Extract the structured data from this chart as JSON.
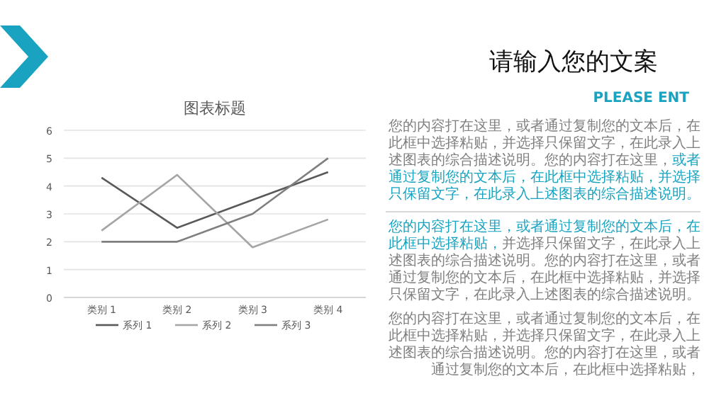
{
  "chart_data": {
    "type": "line",
    "title": "图表标题",
    "categories": [
      "类别 1",
      "类别 2",
      "类别 3",
      "类别 4"
    ],
    "series": [
      {
        "name": "系列 1",
        "color": "#595959",
        "values": [
          4.3,
          2.5,
          3.5,
          4.5
        ]
      },
      {
        "name": "系列 2",
        "color": "#a5a5a5",
        "values": [
          2.4,
          4.4,
          1.8,
          2.8
        ]
      },
      {
        "name": "系列 3",
        "color": "#7f7f7f",
        "values": [
          2,
          2,
          3,
          5
        ]
      }
    ],
    "ylim": [
      0,
      6
    ],
    "yticks": [
      0,
      1,
      2,
      3,
      4,
      5,
      6
    ],
    "grid": "y",
    "legend": "bottom",
    "marker": "none",
    "line_style": "solid",
    "annotations": [
      "请输入您的文案",
      "PLEASE ENT",
      "您的内容打在这里，或者通过复制您的文本后，在此框中选择粘贴，并选择只保留文字，在此录入上述图表的综合描述说明。您的内容打在这里，",
      "或者通过复制您的文本后，在此框中选择粘贴，并选择只保留文字，在此录入上述图表的综合描述说明。",
      "您的内容打在这里，或者通过复制您的文本后，在此框中选择粘贴，",
      "并选择只保留文字，在此录入上述图表的综合描述说明。您的内容打在这里，或者通过复制您的文本后，在此框中选择粘贴，并选择只保留文字，在此录入上述图表的综合描述说明。",
      "您的内容打在这里，或者通过复制您的文本后，在此框中选择粘贴，并选择只保留文字，在此录入上述图表的综合描述说明。您的内容打在这里，或者通过复制您的文本后，在此框中选择粘贴，"
    ]
  }
}
